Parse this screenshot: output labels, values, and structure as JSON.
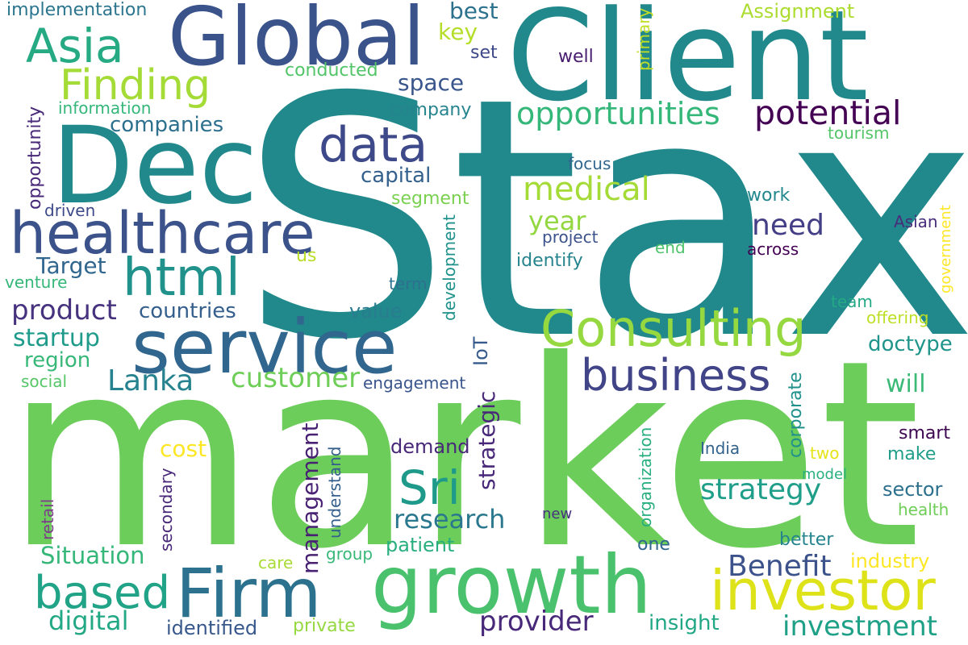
{
  "word_cloud": {
    "words": [
      {
        "text": "Stax",
        "color": "#21888c"
      },
      {
        "text": "market",
        "color": "#6ccd5a"
      },
      {
        "text": "Client",
        "color": "#21888c"
      },
      {
        "text": "Global",
        "color": "#3a538b"
      },
      {
        "text": "Dec",
        "color": "#21888c"
      },
      {
        "text": "service",
        "color": "#31668e"
      },
      {
        "text": "growth",
        "color": "#4ac16d"
      },
      {
        "text": "healthcare",
        "color": "#3b528b"
      },
      {
        "text": "Firm",
        "color": "#2c728e"
      },
      {
        "text": "Consulting",
        "color": "#95d840"
      },
      {
        "text": "investor",
        "color": "#dde318"
      },
      {
        "text": "business",
        "color": "#414487"
      },
      {
        "text": "html",
        "color": "#21918c"
      },
      {
        "text": "data",
        "color": "#3e4989"
      },
      {
        "text": "Asia",
        "color": "#25aa83"
      },
      {
        "text": "Finding",
        "color": "#a5db36"
      },
      {
        "text": "Sri",
        "color": "#1f9a8a"
      },
      {
        "text": "based",
        "color": "#20a386"
      },
      {
        "text": "opportunities",
        "color": "#35b779"
      },
      {
        "text": "potential",
        "color": "#440154"
      },
      {
        "text": "medical",
        "color": "#a5db36"
      },
      {
        "text": "strategy",
        "color": "#1f9e89"
      },
      {
        "text": "customer",
        "color": "#6ece58"
      },
      {
        "text": "product",
        "color": "#46327e"
      },
      {
        "text": "Lanka",
        "color": "#26828e"
      },
      {
        "text": "Benefit",
        "color": "#3b528b"
      },
      {
        "text": "provider",
        "color": "#482878"
      },
      {
        "text": "investment",
        "color": "#1fa187"
      },
      {
        "text": "need",
        "color": "#433e85"
      },
      {
        "text": "research",
        "color": "#2a788e"
      },
      {
        "text": "management",
        "color": "#482173"
      },
      {
        "text": "strategic",
        "color": "#482878"
      },
      {
        "text": "Situation",
        "color": "#35b779"
      },
      {
        "text": "digital",
        "color": "#22a884"
      },
      {
        "text": "startup",
        "color": "#1e9b8a"
      },
      {
        "text": "countries",
        "color": "#355f8d"
      },
      {
        "text": "Target",
        "color": "#31668e"
      },
      {
        "text": "year",
        "color": "#93d741"
      },
      {
        "text": "region",
        "color": "#37b878"
      },
      {
        "text": "cost",
        "color": "#fde725"
      },
      {
        "text": "companies",
        "color": "#2d708e"
      },
      {
        "text": "space",
        "color": "#39568c"
      },
      {
        "text": "capital",
        "color": "#34618d"
      },
      {
        "text": "doctype",
        "color": "#1f958b"
      },
      {
        "text": "will",
        "color": "#3aba76"
      },
      {
        "text": "sector",
        "color": "#2d708e"
      },
      {
        "text": "insight",
        "color": "#22a785"
      },
      {
        "text": "industry",
        "color": "#fde725"
      },
      {
        "text": "identified",
        "color": "#38588c"
      },
      {
        "text": "patient",
        "color": "#29af7f"
      },
      {
        "text": "demand",
        "color": "#482878"
      },
      {
        "text": "value",
        "color": "#287d8e"
      },
      {
        "text": "best",
        "color": "#2c728e"
      },
      {
        "text": "key",
        "color": "#b5de2b"
      },
      {
        "text": "Assignment",
        "color": "#addc30"
      },
      {
        "text": "implementation",
        "color": "#2b758e"
      },
      {
        "text": "conducted",
        "color": "#52c569"
      },
      {
        "text": "information",
        "color": "#35b779"
      },
      {
        "text": "opportunity",
        "color": "#482878"
      },
      {
        "text": "company",
        "color": "#25848e"
      },
      {
        "text": "well",
        "color": "#481d6f"
      },
      {
        "text": "set",
        "color": "#3e4989"
      },
      {
        "text": "primary",
        "color": "#c2df23"
      },
      {
        "text": "tourism",
        "color": "#54c568"
      },
      {
        "text": "focus",
        "color": "#31668e"
      },
      {
        "text": "work",
        "color": "#23888e"
      },
      {
        "text": "Asian",
        "color": "#472d7b"
      },
      {
        "text": "government",
        "color": "#fde725"
      },
      {
        "text": "across",
        "color": "#440154"
      },
      {
        "text": "end",
        "color": "#4ec36b"
      },
      {
        "text": "project",
        "color": "#3b528b"
      },
      {
        "text": "identify",
        "color": "#25848e"
      },
      {
        "text": "segment",
        "color": "#7ad151"
      },
      {
        "text": "driven",
        "color": "#3e4989"
      },
      {
        "text": "venture",
        "color": "#35b779"
      },
      {
        "text": "us",
        "color": "#b8de29"
      },
      {
        "text": "term",
        "color": "#2d718e"
      },
      {
        "text": "IoT",
        "color": "#375a8c"
      },
      {
        "text": "development",
        "color": "#20928c"
      },
      {
        "text": "social",
        "color": "#56c667"
      },
      {
        "text": "engagement",
        "color": "#39558c"
      },
      {
        "text": "team",
        "color": "#23a983"
      },
      {
        "text": "offering",
        "color": "#bddf26"
      },
      {
        "text": "corporate",
        "color": "#21918c"
      },
      {
        "text": "organization",
        "color": "#29af7f"
      },
      {
        "text": "understand",
        "color": "#35608d"
      },
      {
        "text": "India",
        "color": "#33638d"
      },
      {
        "text": "two",
        "color": "#e5e419"
      },
      {
        "text": "smart",
        "color": "#3e0751"
      },
      {
        "text": "make",
        "color": "#1f9e89"
      },
      {
        "text": "model",
        "color": "#2ab07f"
      },
      {
        "text": "health",
        "color": "#6ece58"
      },
      {
        "text": "new",
        "color": "#46327e"
      },
      {
        "text": "one",
        "color": "#31668e"
      },
      {
        "text": "better",
        "color": "#25848e"
      },
      {
        "text": "care",
        "color": "#a8db34"
      },
      {
        "text": "group",
        "color": "#37b878"
      },
      {
        "text": "retail",
        "color": "#7e3b8c"
      },
      {
        "text": "secondary",
        "color": "#482878"
      },
      {
        "text": "private",
        "color": "#95d840"
      }
    ]
  }
}
